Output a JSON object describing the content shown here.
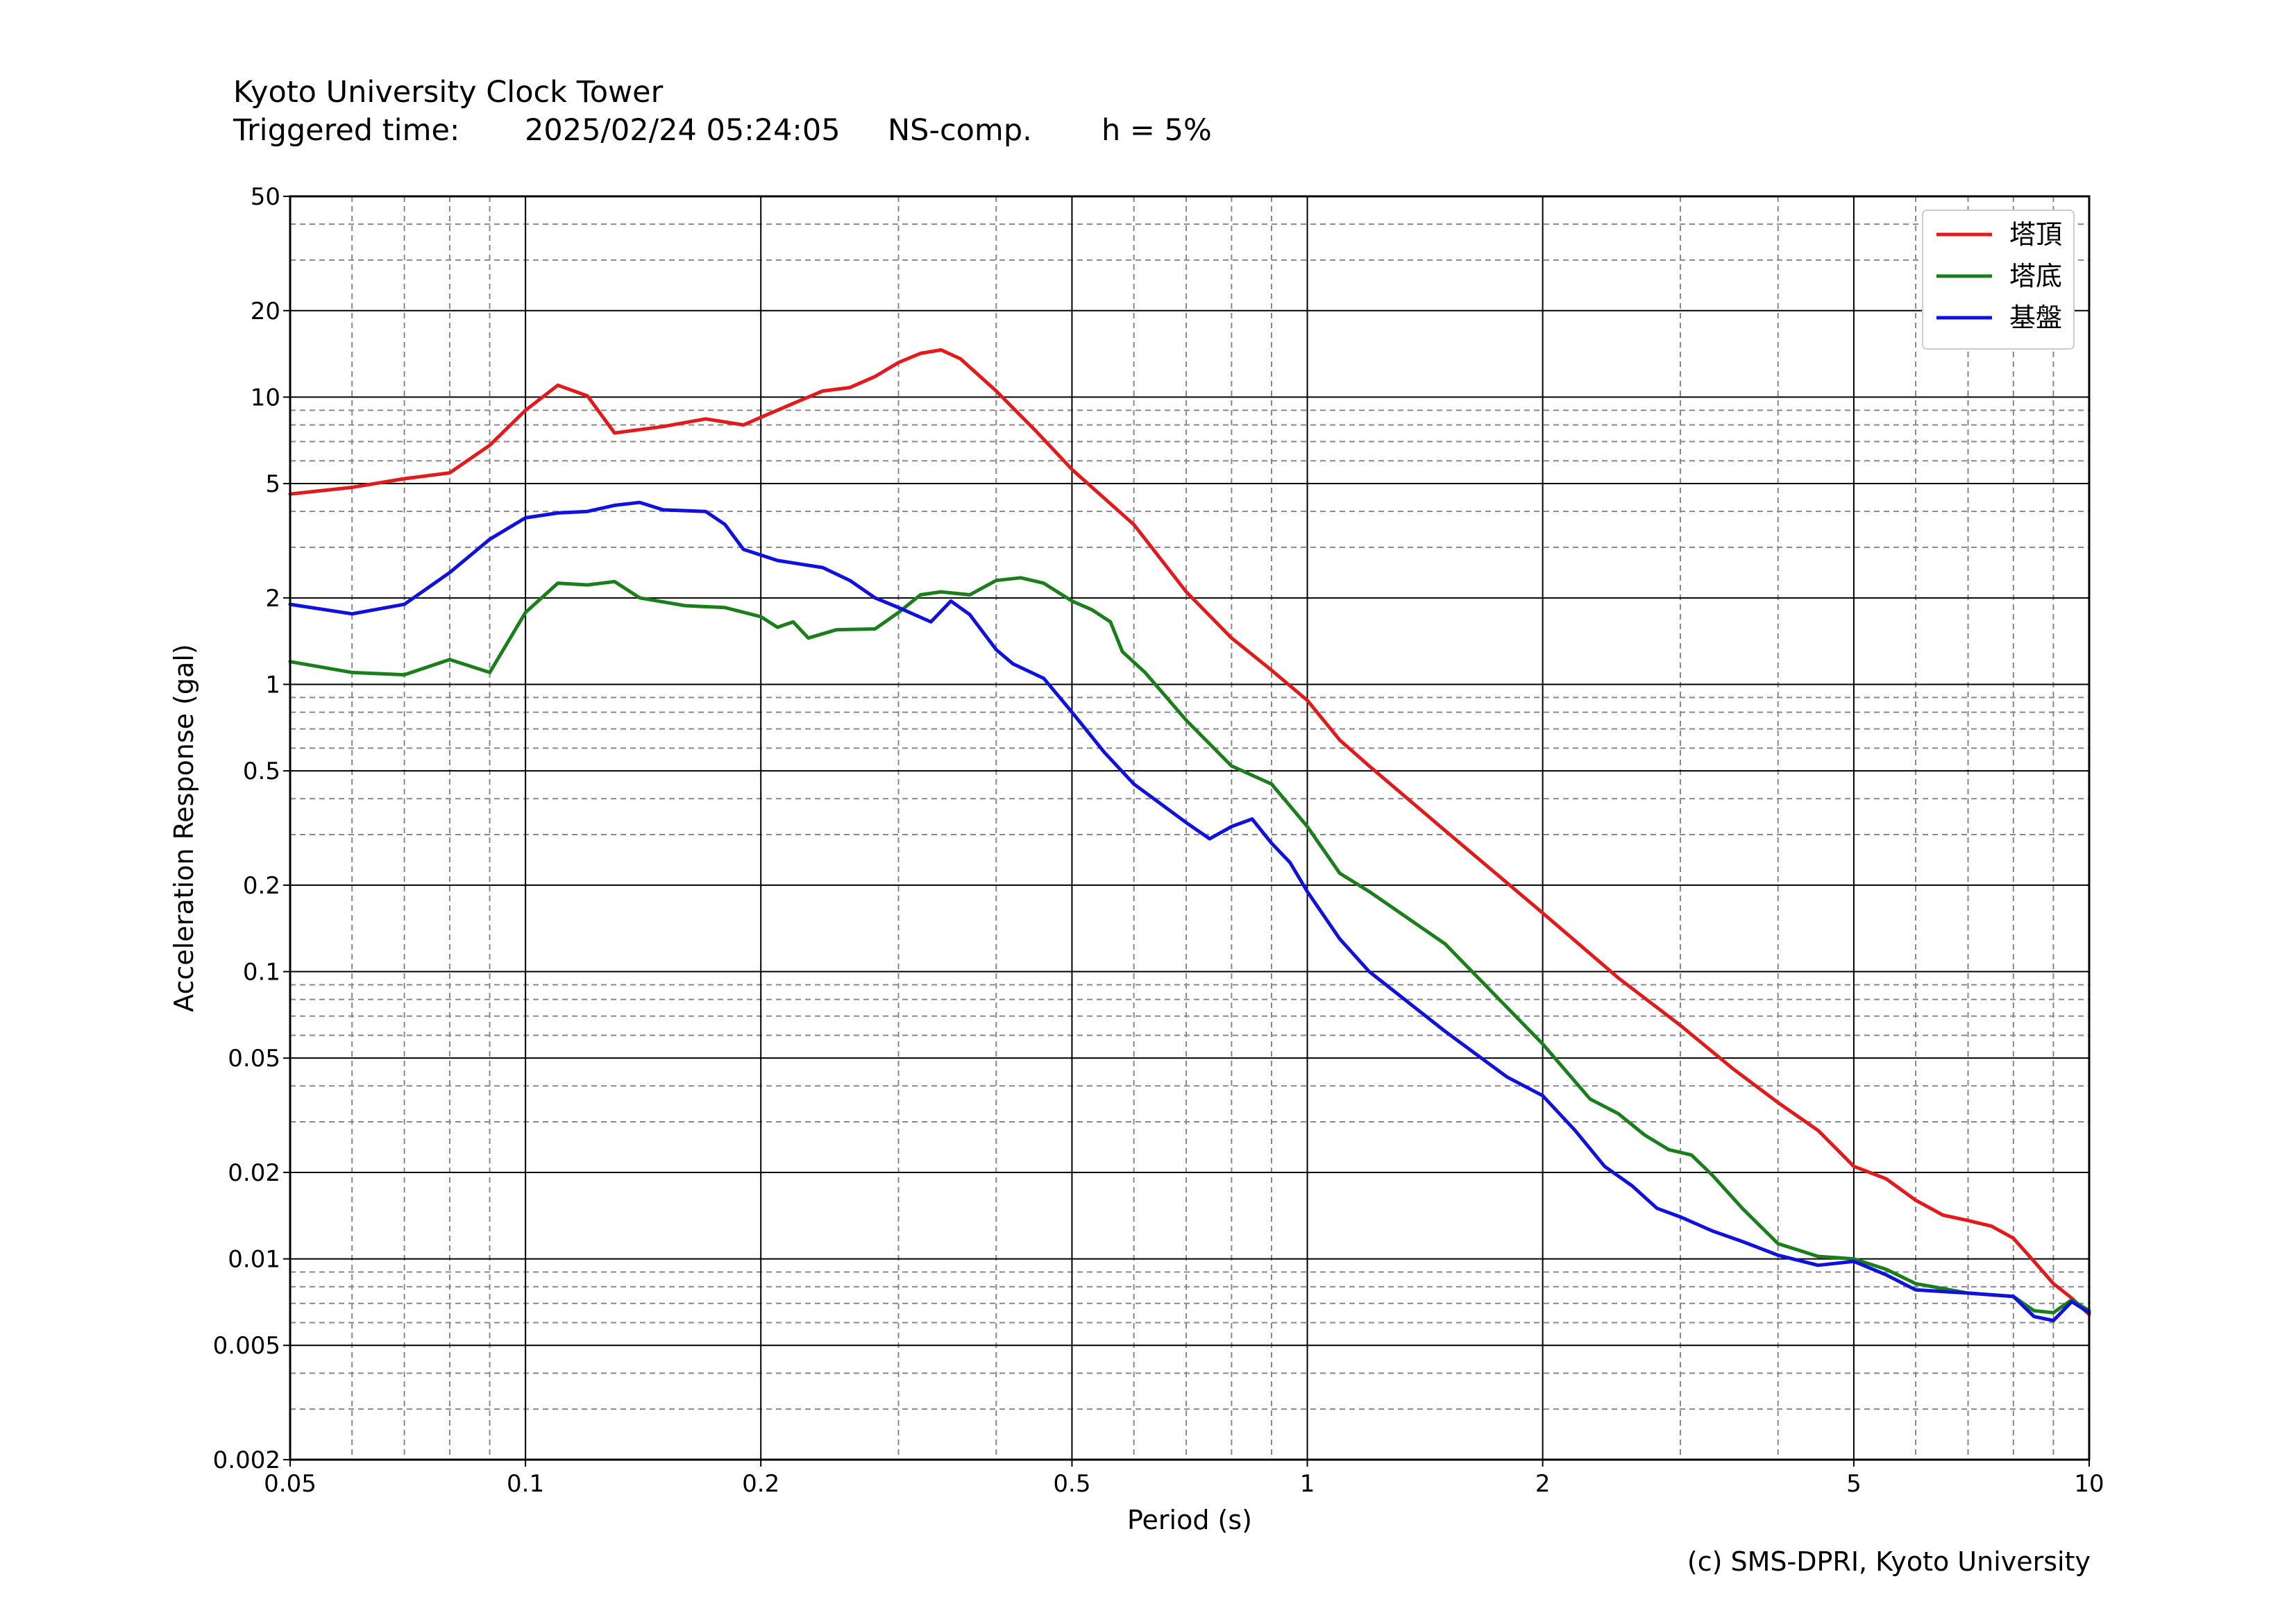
{
  "header": {
    "title": "Kyoto University Clock Tower",
    "triggered_label": "Triggered time:",
    "triggered_value": "2025/02/24 05:24:05",
    "component": "NS-comp.",
    "damping": "h = 5%"
  },
  "footer": {
    "copyright": "(c) SMS-DPRI, Kyoto University"
  },
  "chart_data": {
    "type": "line",
    "title": "Kyoto University Clock Tower",
    "xlabel": "Period (s)",
    "ylabel": "Acceleration Response (gal)",
    "xscale": "log",
    "yscale": "log",
    "xlim": [
      0.05,
      10
    ],
    "ylim": [
      0.002,
      50
    ],
    "xticks": [
      0.05,
      0.1,
      0.2,
      0.5,
      1,
      2,
      5,
      10
    ],
    "xtick_labels": [
      "0.05",
      "0.1",
      "0.2",
      "0.5",
      "1",
      "2",
      "5",
      "10"
    ],
    "yticks": [
      0.002,
      0.005,
      0.01,
      0.02,
      0.05,
      0.1,
      0.2,
      0.5,
      1,
      2,
      5,
      10,
      20,
      50
    ],
    "ytick_labels": [
      "0.002",
      "0.005",
      "0.01",
      "0.02",
      "0.05",
      "0.1",
      "0.2",
      "0.5",
      "1",
      "2",
      "5",
      "10",
      "20",
      "50"
    ],
    "grid": true,
    "legend": "top-right",
    "series": [
      {
        "name": "塔頂",
        "color": "#e31a1c",
        "points": [
          [
            0.05,
            4.6
          ],
          [
            0.06,
            4.85
          ],
          [
            0.07,
            5.2
          ],
          [
            0.08,
            5.45
          ],
          [
            0.09,
            6.8
          ],
          [
            0.1,
            9.0
          ],
          [
            0.11,
            11.0
          ],
          [
            0.12,
            10.1
          ],
          [
            0.13,
            7.5
          ],
          [
            0.15,
            7.9
          ],
          [
            0.17,
            8.4
          ],
          [
            0.19,
            8.0
          ],
          [
            0.2,
            8.5
          ],
          [
            0.22,
            9.5
          ],
          [
            0.24,
            10.5
          ],
          [
            0.26,
            10.8
          ],
          [
            0.28,
            11.8
          ],
          [
            0.3,
            13.2
          ],
          [
            0.32,
            14.2
          ],
          [
            0.34,
            14.6
          ],
          [
            0.36,
            13.6
          ],
          [
            0.4,
            10.5
          ],
          [
            0.45,
            7.6
          ],
          [
            0.5,
            5.6
          ],
          [
            0.6,
            3.6
          ],
          [
            0.7,
            2.1
          ],
          [
            0.8,
            1.45
          ],
          [
            0.9,
            1.12
          ],
          [
            1.0,
            0.88
          ],
          [
            1.1,
            0.64
          ],
          [
            1.2,
            0.52
          ],
          [
            1.5,
            0.31
          ],
          [
            2.0,
            0.16
          ],
          [
            2.5,
            0.095
          ],
          [
            3.0,
            0.065
          ],
          [
            3.5,
            0.046
          ],
          [
            4.0,
            0.035
          ],
          [
            4.5,
            0.028
          ],
          [
            5.0,
            0.021
          ],
          [
            5.5,
            0.019
          ],
          [
            6.0,
            0.016
          ],
          [
            6.5,
            0.0142
          ],
          [
            7.0,
            0.0136
          ],
          [
            7.5,
            0.013
          ],
          [
            8.0,
            0.0118
          ],
          [
            8.5,
            0.0098
          ],
          [
            9.0,
            0.0082
          ],
          [
            9.5,
            0.0073
          ],
          [
            10.0,
            0.0064
          ]
        ]
      },
      {
        "name": "塔底",
        "color": "#1a7f1a",
        "points": [
          [
            0.05,
            1.2
          ],
          [
            0.06,
            1.1
          ],
          [
            0.07,
            1.08
          ],
          [
            0.08,
            1.22
          ],
          [
            0.09,
            1.1
          ],
          [
            0.1,
            1.78
          ],
          [
            0.11,
            2.25
          ],
          [
            0.12,
            2.22
          ],
          [
            0.13,
            2.28
          ],
          [
            0.14,
            2.0
          ],
          [
            0.16,
            1.88
          ],
          [
            0.18,
            1.85
          ],
          [
            0.2,
            1.72
          ],
          [
            0.21,
            1.58
          ],
          [
            0.22,
            1.65
          ],
          [
            0.23,
            1.45
          ],
          [
            0.25,
            1.55
          ],
          [
            0.28,
            1.56
          ],
          [
            0.3,
            1.78
          ],
          [
            0.32,
            2.05
          ],
          [
            0.34,
            2.1
          ],
          [
            0.37,
            2.05
          ],
          [
            0.4,
            2.3
          ],
          [
            0.43,
            2.35
          ],
          [
            0.46,
            2.25
          ],
          [
            0.5,
            1.95
          ],
          [
            0.53,
            1.82
          ],
          [
            0.56,
            1.65
          ],
          [
            0.58,
            1.3
          ],
          [
            0.62,
            1.1
          ],
          [
            0.7,
            0.75
          ],
          [
            0.8,
            0.52
          ],
          [
            0.9,
            0.45
          ],
          [
            1.0,
            0.32
          ],
          [
            1.1,
            0.22
          ],
          [
            1.2,
            0.19
          ],
          [
            1.5,
            0.125
          ],
          [
            2.0,
            0.056
          ],
          [
            2.3,
            0.036
          ],
          [
            2.5,
            0.032
          ],
          [
            2.7,
            0.027
          ],
          [
            2.9,
            0.024
          ],
          [
            3.1,
            0.023
          ],
          [
            3.3,
            0.0195
          ],
          [
            3.6,
            0.015
          ],
          [
            4.0,
            0.0113
          ],
          [
            4.5,
            0.0102
          ],
          [
            5.0,
            0.01
          ],
          [
            5.5,
            0.0092
          ],
          [
            6.0,
            0.0082
          ],
          [
            7.0,
            0.0076
          ],
          [
            8.0,
            0.0074
          ],
          [
            8.5,
            0.0066
          ],
          [
            9.0,
            0.0065
          ],
          [
            9.5,
            0.0072
          ],
          [
            10.0,
            0.0066
          ]
        ]
      },
      {
        "name": "基盤",
        "color": "#1111dd",
        "points": [
          [
            0.05,
            1.9
          ],
          [
            0.06,
            1.76
          ],
          [
            0.07,
            1.9
          ],
          [
            0.08,
            2.45
          ],
          [
            0.09,
            3.2
          ],
          [
            0.1,
            3.8
          ],
          [
            0.11,
            3.95
          ],
          [
            0.12,
            4.0
          ],
          [
            0.13,
            4.2
          ],
          [
            0.14,
            4.3
          ],
          [
            0.15,
            4.05
          ],
          [
            0.17,
            4.0
          ],
          [
            0.18,
            3.6
          ],
          [
            0.19,
            2.95
          ],
          [
            0.21,
            2.7
          ],
          [
            0.24,
            2.55
          ],
          [
            0.26,
            2.3
          ],
          [
            0.28,
            2.0
          ],
          [
            0.3,
            1.85
          ],
          [
            0.33,
            1.65
          ],
          [
            0.35,
            1.95
          ],
          [
            0.37,
            1.75
          ],
          [
            0.4,
            1.32
          ],
          [
            0.42,
            1.18
          ],
          [
            0.46,
            1.05
          ],
          [
            0.5,
            0.8
          ],
          [
            0.55,
            0.58
          ],
          [
            0.6,
            0.45
          ],
          [
            0.7,
            0.33
          ],
          [
            0.75,
            0.29
          ],
          [
            0.8,
            0.32
          ],
          [
            0.85,
            0.34
          ],
          [
            0.9,
            0.28
          ],
          [
            0.95,
            0.24
          ],
          [
            1.0,
            0.19
          ],
          [
            1.1,
            0.13
          ],
          [
            1.2,
            0.1
          ],
          [
            1.5,
            0.062
          ],
          [
            1.8,
            0.043
          ],
          [
            2.0,
            0.037
          ],
          [
            2.2,
            0.028
          ],
          [
            2.4,
            0.021
          ],
          [
            2.6,
            0.018
          ],
          [
            2.8,
            0.015
          ],
          [
            3.0,
            0.014
          ],
          [
            3.3,
            0.0125
          ],
          [
            3.6,
            0.0115
          ],
          [
            4.0,
            0.0103
          ],
          [
            4.5,
            0.0095
          ],
          [
            5.0,
            0.0098
          ],
          [
            5.5,
            0.0088
          ],
          [
            6.0,
            0.0078
          ],
          [
            7.0,
            0.0076
          ],
          [
            8.0,
            0.0074
          ],
          [
            8.5,
            0.0063
          ],
          [
            9.0,
            0.0061
          ],
          [
            9.5,
            0.0071
          ],
          [
            10.0,
            0.0065
          ]
        ]
      }
    ]
  }
}
